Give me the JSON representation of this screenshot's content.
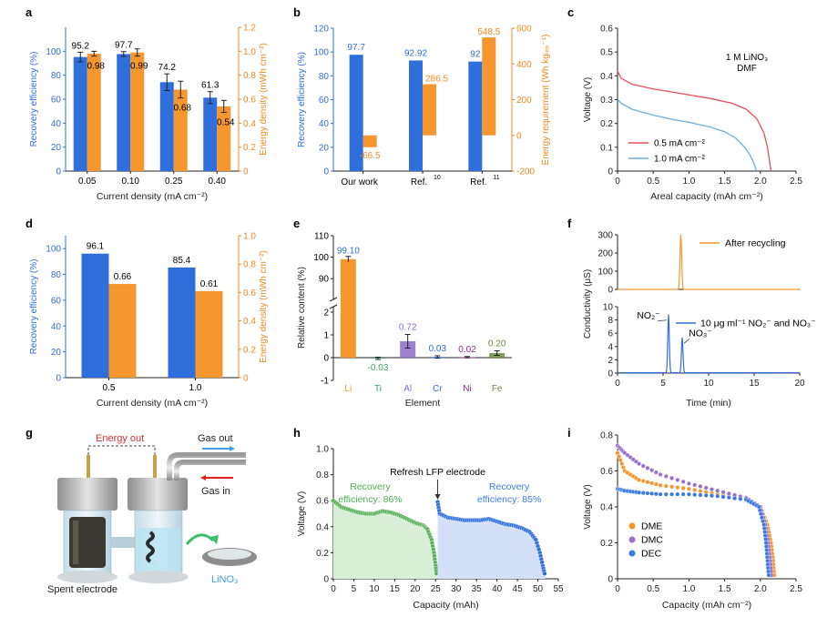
{
  "colors": {
    "blue": "#2f6fdc",
    "orange": "#f5962f",
    "red": "#e8505b",
    "lightblue": "#6aaedb",
    "purple": "#9b59b6",
    "green": "#58b058",
    "axis": "#222222",
    "blueAxis": "#2f6fdc",
    "orangeAxis": "#f08a24"
  },
  "chart_data": [
    {
      "panel": "a",
      "type": "bar",
      "categories": [
        "0.05",
        "0.10",
        "0.25",
        "0.40"
      ],
      "xlabel": "Current density (mA cm⁻²)",
      "ylabel": "Recovery efficiency (%)",
      "y2label": "Energy density (mWh cm⁻²)",
      "ylim": [
        0,
        120
      ],
      "y2lim": [
        0,
        1.2
      ],
      "yticks": [
        "0",
        "20",
        "40",
        "60",
        "80",
        "100"
      ],
      "y2ticks": [
        "0",
        "0.2",
        "0.4",
        "0.6",
        "0.8",
        "1.0",
        "1.2"
      ],
      "series": [
        {
          "name": "Recovery efficiency",
          "axis": "left",
          "values": [
            95.2,
            97.7,
            74.2,
            61.3
          ],
          "errors": [
            4,
            2,
            7,
            5
          ],
          "labels": [
            "95.2",
            "97.7",
            "74.2",
            "61.3"
          ]
        },
        {
          "name": "Energy density",
          "axis": "right",
          "values": [
            0.98,
            0.99,
            0.68,
            0.54
          ],
          "errors": [
            0.02,
            0.03,
            0.07,
            0.05
          ],
          "labels": [
            "0.98",
            "0.99",
            "0.68",
            "0.54"
          ]
        }
      ]
    },
    {
      "panel": "b",
      "type": "bar",
      "categories": [
        "Our work",
        "Ref. ",
        "Ref. "
      ],
      "category_sup": [
        "",
        "10",
        "11"
      ],
      "ylabel": "Recovery efficiency (%)",
      "y2label": "Energy requirement (Wh kgₗₑₚ⁻¹)",
      "ylim": [
        0,
        120
      ],
      "y2lim": [
        -200,
        600
      ],
      "yticks": [
        "0",
        "20",
        "40",
        "60",
        "80",
        "100",
        "120"
      ],
      "y2ticks": [
        "-200",
        "0",
        "200",
        "400",
        "600"
      ],
      "series": [
        {
          "name": "Recovery efficiency",
          "axis": "left",
          "values": [
            97.7,
            92.92,
            92
          ],
          "labels": [
            "97.7",
            "92.92",
            "92"
          ]
        },
        {
          "name": "Energy requirement",
          "axis": "right",
          "values": [
            -66.5,
            286.5,
            548.5
          ],
          "labels": [
            "-66.5",
            "286.5",
            "548.5"
          ]
        }
      ]
    },
    {
      "panel": "c",
      "type": "line",
      "xlabel": "Areal capacity (mAh cm⁻²)",
      "ylabel": "Voltage (V)",
      "xlim": [
        0,
        2.5
      ],
      "ylim": [
        0,
        0.6
      ],
      "xticks": [
        "0",
        "0.5",
        "1.0",
        "1.5",
        "2.0",
        "2.5"
      ],
      "yticks": [
        "0",
        "0.1",
        "0.2",
        "0.3",
        "0.4",
        "0.5",
        "0.6"
      ],
      "annotation": [
        "1 M LiNO₃",
        "DMF"
      ],
      "series": [
        {
          "name": "0.5 mA cm⁻²",
          "x": [
            0,
            0.05,
            0.2,
            0.5,
            0.8,
            1.0,
            1.3,
            1.6,
            1.8,
            1.95,
            2.05,
            2.1,
            2.13,
            2.15
          ],
          "y": [
            0.42,
            0.39,
            0.365,
            0.345,
            0.33,
            0.32,
            0.305,
            0.285,
            0.26,
            0.22,
            0.16,
            0.1,
            0.04,
            0.0
          ]
        },
        {
          "name": "1.0 mA cm⁻²",
          "x": [
            0,
            0.05,
            0.2,
            0.5,
            0.8,
            1.0,
            1.3,
            1.5,
            1.65,
            1.78,
            1.85,
            1.9,
            1.93,
            1.95
          ],
          "y": [
            0.3,
            0.285,
            0.26,
            0.235,
            0.215,
            0.205,
            0.185,
            0.165,
            0.14,
            0.1,
            0.07,
            0.04,
            0.015,
            0.0
          ]
        }
      ]
    },
    {
      "panel": "d",
      "type": "bar",
      "categories": [
        "0.5",
        "1.0"
      ],
      "xlabel": "Current density (mA cm⁻²)",
      "ylabel": "Recovery efficiency (%)",
      "y2label": "Energy density (mWh cm⁻²)",
      "ylim": [
        0,
        110
      ],
      "y2lim": [
        0,
        1.0
      ],
      "yticks": [
        "0",
        "20",
        "40",
        "60",
        "80",
        "100"
      ],
      "y2ticks": [
        "0",
        "0.2",
        "0.4",
        "0.6",
        "0.8",
        "1.0"
      ],
      "series": [
        {
          "name": "Recovery efficiency",
          "axis": "left",
          "values": [
            96.1,
            85.4
          ],
          "labels": [
            "96.1",
            "85.4"
          ]
        },
        {
          "name": "Energy density",
          "axis": "right",
          "values": [
            0.66,
            0.61
          ],
          "labels": [
            "0.66",
            "0.61"
          ]
        }
      ]
    },
    {
      "panel": "e",
      "type": "bar",
      "categories": [
        "Li",
        "Ti",
        "Al",
        "Cr",
        "Ni",
        "Fe"
      ],
      "category_colors": [
        "#f5962f",
        "#3aa26a",
        "#8a6cc8",
        "#2f6fdc",
        "#8e2c8e",
        "#6b8e3a"
      ],
      "xlabel": "Element",
      "ylabel": "Relative content (%)",
      "yticks_top": [
        "90",
        "100",
        "110"
      ],
      "yticks_bottom": [
        "-1",
        "0",
        "1",
        "2"
      ],
      "values": [
        99.1,
        -0.03,
        0.72,
        0.03,
        0.02,
        0.2
      ],
      "errors": [
        0.4,
        0.05,
        0.3,
        0.05,
        0.03,
        0.1
      ],
      "labels": [
        "99.10",
        "-0.03",
        "0.72",
        "0.03",
        "0.02",
        "0.20"
      ]
    },
    {
      "panel": "f",
      "type": "line",
      "xlabel": "Time (min)",
      "ylabel": "Conductivity (μS)",
      "xlim": [
        0,
        20
      ],
      "xticks": [
        "0",
        "5",
        "10",
        "15",
        "20"
      ],
      "top": {
        "ylim": [
          0,
          300
        ],
        "yticks": [
          "0",
          "100",
          "200",
          "300"
        ],
        "legend": "After recycling",
        "peak_x": 6.95,
        "peak_y": 300
      },
      "bottom": {
        "ylim": [
          0,
          10
        ],
        "yticks": [
          "0",
          "2",
          "4",
          "6",
          "8",
          "10"
        ],
        "legend": "10 μg ml⁻¹ NO₂⁻ and NO₃⁻",
        "peaks": [
          {
            "label": "NO₂⁻",
            "x": 5.6,
            "y": 8.8
          },
          {
            "label": "NO₃⁻",
            "x": 7.1,
            "y": 5.3
          }
        ]
      }
    },
    {
      "panel": "h",
      "type": "scatter",
      "xlabel": "Capacity (mAh)",
      "ylabel": "Voltage (V)",
      "xlim": [
        0,
        55
      ],
      "ylim": [
        0,
        1.0
      ],
      "xticks": [
        "0",
        "5",
        "10",
        "15",
        "20",
        "25",
        "30",
        "35",
        "40",
        "45",
        "50",
        "55"
      ],
      "yticks": [
        "0",
        "0.2",
        "0.4",
        "0.6",
        "0.8",
        "1.0"
      ],
      "annotation": "Refresh LFP electrode",
      "series": [
        {
          "name": "Recovery efficiency: 86%",
          "label_lines": [
            "Recovery",
            "efficiency: 86%"
          ],
          "x": [
            0,
            2,
            4,
            6,
            8,
            10,
            12,
            14,
            16,
            18,
            20,
            22,
            23,
            24,
            24.6,
            25,
            25.3
          ],
          "y": [
            0.6,
            0.55,
            0.53,
            0.51,
            0.5,
            0.5,
            0.52,
            0.51,
            0.49,
            0.46,
            0.43,
            0.41,
            0.38,
            0.3,
            0.2,
            0.1,
            0.02
          ]
        },
        {
          "name": "Recovery efficiency: 85%",
          "label_lines": [
            "Recovery",
            "efficiency: 85%"
          ],
          "x": [
            25.5,
            26,
            28,
            30,
            32,
            34,
            36,
            38,
            40,
            42,
            44,
            46,
            48,
            49.5,
            50.5,
            51.2,
            51.8
          ],
          "y": [
            0.59,
            0.5,
            0.47,
            0.46,
            0.45,
            0.45,
            0.45,
            0.46,
            0.44,
            0.42,
            0.41,
            0.39,
            0.36,
            0.3,
            0.2,
            0.1,
            0.02
          ]
        }
      ]
    },
    {
      "panel": "i",
      "type": "scatter",
      "xlabel": "Capacity (mAh cm⁻²)",
      "ylabel": "Voltage (V)",
      "xlim": [
        0,
        2.5
      ],
      "ylim": [
        0,
        0.8
      ],
      "xticks": [
        "0",
        "0.5",
        "1.0",
        "1.5",
        "2.0",
        "2.5"
      ],
      "yticks": [
        "0",
        "0.2",
        "0.4",
        "0.6",
        "0.8"
      ],
      "series": [
        {
          "name": "DME",
          "x": [
            0,
            0.1,
            0.3,
            0.6,
            1.0,
            1.4,
            1.8,
            2.0,
            2.1,
            2.15,
            2.18,
            2.2
          ],
          "y": [
            0.7,
            0.6,
            0.55,
            0.52,
            0.5,
            0.47,
            0.44,
            0.4,
            0.3,
            0.2,
            0.1,
            0.0
          ]
        },
        {
          "name": "DMC",
          "x": [
            0,
            0.1,
            0.3,
            0.6,
            1.0,
            1.4,
            1.8,
            2.0,
            2.07,
            2.11,
            2.14,
            2.16
          ],
          "y": [
            0.74,
            0.7,
            0.64,
            0.58,
            0.53,
            0.49,
            0.45,
            0.4,
            0.3,
            0.2,
            0.1,
            0.0
          ]
        },
        {
          "name": "DEC",
          "x": [
            0,
            0.1,
            0.3,
            0.6,
            1.0,
            1.4,
            1.8,
            1.98,
            2.05,
            2.08,
            2.1,
            2.12
          ],
          "y": [
            0.5,
            0.49,
            0.48,
            0.47,
            0.47,
            0.46,
            0.44,
            0.4,
            0.3,
            0.2,
            0.1,
            0.0
          ]
        }
      ]
    }
  ],
  "panels": {
    "a": "a",
    "b": "b",
    "c": "c",
    "d": "d",
    "e": "e",
    "f": "f",
    "g": "g",
    "h": "h",
    "i": "i"
  },
  "illustration_g": {
    "energy_out": "Energy out",
    "gas_out": "Gas out",
    "gas_in": "Gas in",
    "spent_electrode": "Spent electrode",
    "lino3": "LiNO₃"
  }
}
